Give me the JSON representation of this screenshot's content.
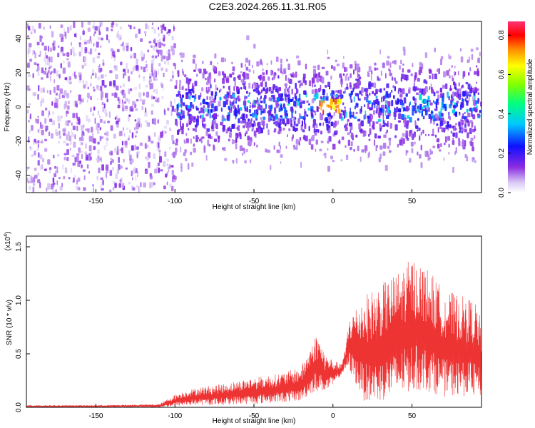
{
  "title": "C2E3.2024.265.11.31.R05",
  "chart_data": [
    {
      "type": "heatmap",
      "xlabel": "Height of straight line (km)",
      "ylabel": "Frequency (Hz)",
      "xlim": [
        -194,
        94
      ],
      "ylim": [
        -50,
        50
      ],
      "xticks": [
        -150,
        -100,
        -50,
        0,
        50
      ],
      "yticks": [
        -40,
        -20,
        0,
        20,
        40
      ],
      "colorbar": {
        "label": "Normalized spectral amplitude",
        "range": [
          0.0,
          0.87
        ],
        "ticks": [
          "0.0",
          "0.2",
          "0.4",
          "0.6",
          "0.8"
        ]
      },
      "regions": [
        {
          "x_range": [
            -194,
            -100
          ],
          "description_values": {
            "typical_amplitude": 0.05,
            "freq_spread": [
              -50,
              50
            ]
          }
        },
        {
          "x_range": [
            -100,
            94
          ],
          "description_values": {
            "typical_amplitude": 0.25,
            "freq_spread": [
              -25,
              25
            ]
          }
        },
        {
          "x_range": [
            -10,
            5
          ],
          "description_values": {
            "peak_amplitude": 0.85,
            "freq_center": 0
          }
        }
      ]
    },
    {
      "type": "line",
      "xlabel": "Height of straight line (km)",
      "ylabel": "SNR (10 * v/v)",
      "yscale_label": "(x10",
      "yscale_exp": "4",
      "xlim": [
        -194,
        94
      ],
      "ylim": [
        0,
        1.6
      ],
      "xticks": [
        -150,
        -100,
        -50,
        0,
        50
      ],
      "yticks": [
        "0.0",
        "0.5",
        "1.0",
        "1.5"
      ],
      "series": [
        {
          "color": "#ee3333",
          "envelope": {
            "x": [
              -194,
              -150,
              -110,
              -100,
              -90,
              -80,
              -70,
              -60,
              -50,
              -40,
              -30,
              -20,
              -15,
              -10,
              -5,
              0,
              5,
              8,
              10,
              20,
              30,
              40,
              50,
              60,
              70,
              80,
              90,
              94
            ],
            "upper": [
              0.02,
              0.02,
              0.03,
              0.12,
              0.17,
              0.2,
              0.22,
              0.25,
              0.28,
              0.3,
              0.33,
              0.38,
              0.55,
              0.7,
              0.5,
              0.45,
              0.4,
              0.55,
              0.85,
              1.05,
              1.15,
              1.25,
              1.4,
              1.3,
              1.1,
              1.05,
              1.0,
              0.8
            ],
            "lower": [
              0.0,
              0.0,
              0.0,
              0.01,
              0.02,
              0.02,
              0.02,
              0.03,
              0.03,
              0.04,
              0.05,
              0.06,
              0.12,
              0.15,
              0.15,
              0.2,
              0.3,
              0.35,
              0.35,
              0.05,
              0.05,
              0.1,
              0.15,
              0.15,
              0.1,
              0.1,
              0.1,
              0.1
            ]
          }
        }
      ]
    }
  ]
}
